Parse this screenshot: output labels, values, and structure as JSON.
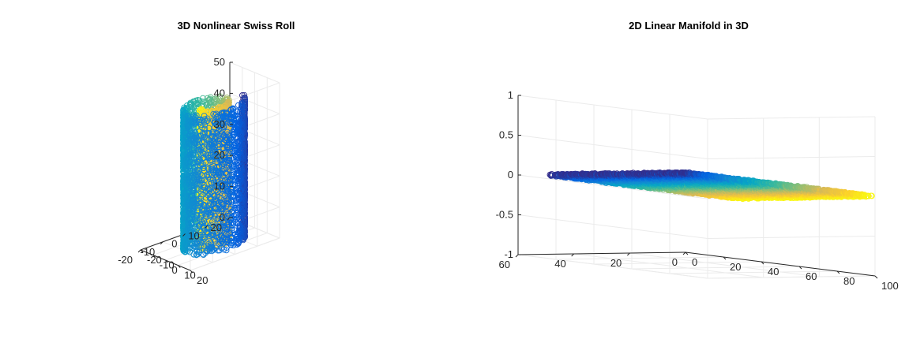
{
  "figure": {
    "colormap": [
      "#352a87",
      "#0363e1",
      "#1485d4",
      "#06a7c6",
      "#38b99e",
      "#92bf73",
      "#d9ba56",
      "#fcce2e",
      "#f9fb0e"
    ]
  },
  "chart_data": [
    {
      "type": "scatter3d",
      "title": "3D Nonlinear Swiss Roll",
      "marker": "open-circle",
      "xlim": [
        -20,
        20
      ],
      "ylim": [
        -20,
        20
      ],
      "zlim": [
        0,
        50
      ],
      "x_ticks": [
        "-20",
        "-10",
        "0",
        "10",
        "20"
      ],
      "y_ticks": [
        "-20",
        "-10",
        "0",
        "10",
        "20"
      ],
      "z_ticks": [
        "0",
        "10",
        "20",
        "30",
        "40",
        "50"
      ],
      "grid": true,
      "manifold": {
        "shape": "swiss-roll",
        "parameter_range": [
          4.7,
          14.1
        ],
        "height_range": [
          0,
          45
        ],
        "color_by": "parameter"
      }
    },
    {
      "type": "scatter3d",
      "title": "2D Linear Manifold in 3D",
      "marker": "open-circle",
      "xlim": [
        0,
        100
      ],
      "ylim": [
        0,
        60
      ],
      "zlim": [
        -1,
        1
      ],
      "x_ticks": [
        "0",
        "20",
        "40",
        "60",
        "80",
        "100"
      ],
      "y_ticks": [
        "0",
        "20",
        "40",
        "60"
      ],
      "z_ticks": [
        "-1",
        "-0.5",
        "0",
        "0.5",
        "1"
      ],
      "grid": true,
      "manifold": {
        "shape": "plane",
        "x_range": [
          0,
          100
        ],
        "y_range": [
          0,
          50
        ],
        "z_value": 0,
        "color_by": "x"
      }
    }
  ]
}
